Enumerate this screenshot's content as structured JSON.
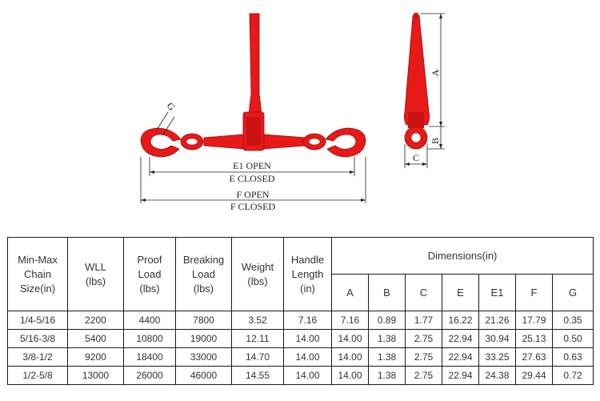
{
  "diagram": {
    "labels": {
      "g": "G",
      "a": "A",
      "b": "B",
      "c": "C",
      "e1_open": "E1  OPEN",
      "e_closed": "E  CLOSED",
      "f_open": "F  OPEN",
      "f_closed": "F  CLOSED"
    },
    "color_red": "#e81919",
    "color_dark_red": "#b00d0d"
  },
  "table": {
    "headers": {
      "size": [
        "Min-Max",
        "Chain",
        "Size(in)"
      ],
      "wll": [
        "WLL",
        "(lbs)"
      ],
      "proof": [
        "Proof",
        "Load",
        "(lbs)"
      ],
      "breaking": [
        "Breaking",
        "Load",
        "(lbs)"
      ],
      "weight": [
        "Weight",
        "(lbs)"
      ],
      "handle": [
        "Handle",
        "Length",
        "(in)"
      ],
      "dimensions": "Dimensions(in)",
      "dims": [
        "A",
        "B",
        "C",
        "E",
        "E1",
        "F",
        "G"
      ]
    },
    "rows": [
      [
        "1/4-5/16",
        "2200",
        "4400",
        "7800",
        "3.52",
        "7.16",
        "7.16",
        "0.89",
        "1.77",
        "16.22",
        "21.26",
        "17.79",
        "0.35"
      ],
      [
        "5/16-3/8",
        "5400",
        "10800",
        "19000",
        "12.11",
        "14.00",
        "14.00",
        "1.38",
        "2.75",
        "22.94",
        "30.94",
        "25.13",
        "0.50"
      ],
      [
        "3/8-1/2",
        "9200",
        "18400",
        "33000",
        "14.70",
        "14.00",
        "14.00",
        "1.38",
        "2.75",
        "22.94",
        "33.25",
        "27.63",
        "0.63"
      ],
      [
        "1/2-5/8",
        "13000",
        "26000",
        "46000",
        "14.55",
        "14.00",
        "14.00",
        "1.38",
        "2.75",
        "22.94",
        "24.38",
        "29.44",
        "0.72"
      ]
    ]
  }
}
